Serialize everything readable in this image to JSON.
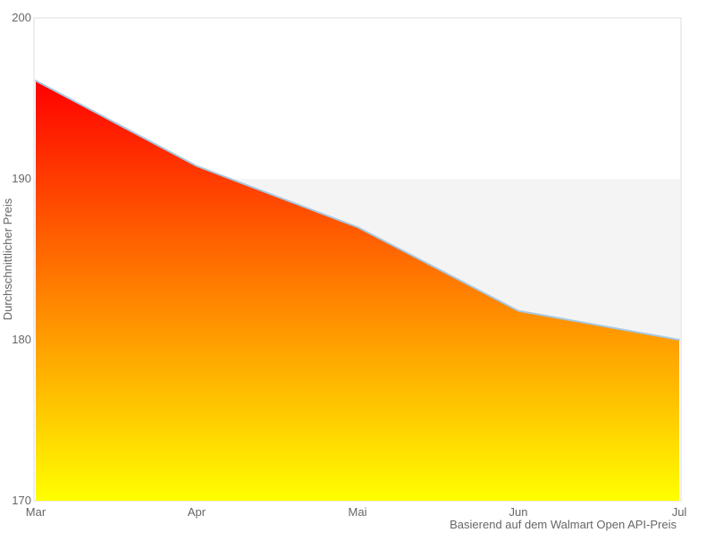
{
  "chart_data": {
    "type": "area",
    "categories": [
      "Mar",
      "Apr",
      "Mai",
      "Jun",
      "Jul"
    ],
    "values": [
      196.1,
      190.8,
      187.0,
      181.8,
      180.0
    ],
    "title": "",
    "xlabel": "Basierend auf dem Walmart Open API-Preis",
    "ylabel": "Durchschnittlicher Preis",
    "ylim": [
      170,
      200
    ],
    "yticks": [
      200,
      190,
      180,
      170
    ],
    "grid": false,
    "legend": false,
    "plot_band": {
      "from": 180,
      "to": 190,
      "color": "#f4f4f4"
    },
    "colors": {
      "line": "#a8c8e0",
      "area_gradient_top": "#ff0000",
      "area_gradient_bottom": "#ffff00",
      "plot_border": "#dddddd",
      "tick_text": "#666666",
      "axis_title_text": "#666666"
    }
  }
}
